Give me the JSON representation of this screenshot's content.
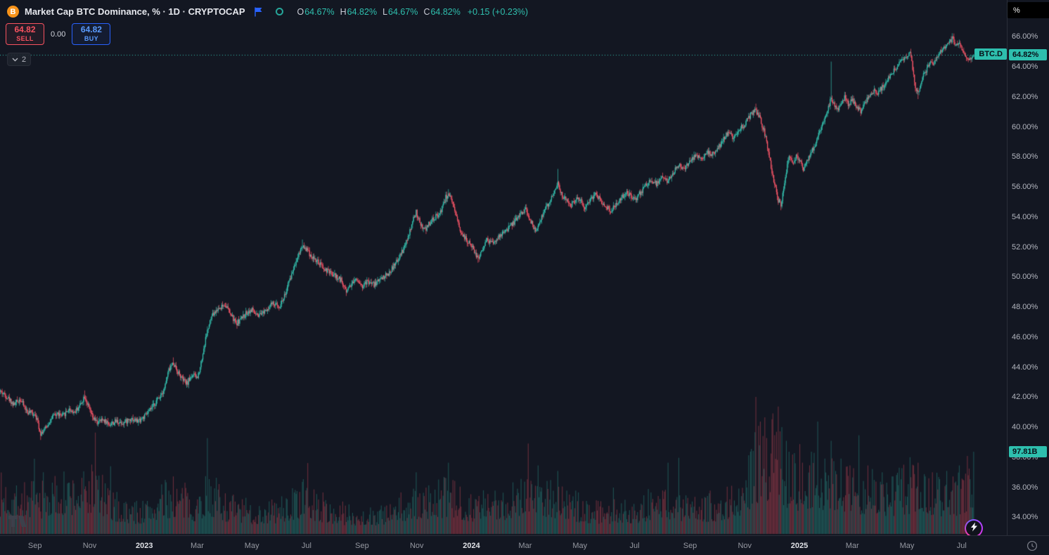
{
  "colors": {
    "bg": "#131722",
    "grid": "#2a2e39",
    "up": "#34c1af",
    "down": "#f65567",
    "vol_up": "rgba(50,180,164,0.38)",
    "vol_down": "rgba(246,85,103,0.38)",
    "badge_teal": "#2ebfae",
    "accent_blue": "#2962ff",
    "btc_orange": "#f7931a"
  },
  "header": {
    "btc_glyph": "B",
    "symbol_title": "Market Cap BTC Dominance, % · 1D · CRYPTOCAP",
    "ohlc": {
      "o_label": "O",
      "o_value": "64.67%",
      "h_label": "H",
      "h_value": "64.82%",
      "l_label": "L",
      "l_value": "64.67%",
      "c_label": "C",
      "c_value": "64.82%",
      "change": "+0.15 (+0.23%)"
    }
  },
  "trade_panel": {
    "sell_price": "64.82",
    "sell_label": "SELL",
    "spread": "0.00",
    "buy_price": "64.82",
    "buy_label": "BUY"
  },
  "object_tree_button": {
    "count": "2"
  },
  "price_scale": {
    "unit_button": "%",
    "symbol_badge": "BTC.D",
    "last_price_badge": "64.82%",
    "volume_badge": "97.81B",
    "tick_suffix": "%",
    "tick_values": [
      66,
      64,
      62,
      60,
      58,
      56,
      54,
      52,
      50,
      48,
      46,
      44,
      42,
      40,
      38,
      36,
      34
    ]
  },
  "time_scale": {
    "ticks": [
      {
        "label": "Sep",
        "day": 39
      },
      {
        "label": "Nov",
        "day": 100
      },
      {
        "label": "2023",
        "day": 161,
        "major": true
      },
      {
        "label": "Mar",
        "day": 220
      },
      {
        "label": "May",
        "day": 281
      },
      {
        "label": "Jul",
        "day": 342
      },
      {
        "label": "Sep",
        "day": 404
      },
      {
        "label": "Nov",
        "day": 465
      },
      {
        "label": "2024",
        "day": 526,
        "major": true
      },
      {
        "label": "Mar",
        "day": 586
      },
      {
        "label": "May",
        "day": 647
      },
      {
        "label": "Jul",
        "day": 708
      },
      {
        "label": "Sep",
        "day": 770
      },
      {
        "label": "Nov",
        "day": 831
      },
      {
        "label": "2025",
        "day": 892,
        "major": true
      },
      {
        "label": "Mar",
        "day": 951
      },
      {
        "label": "May",
        "day": 1012
      },
      {
        "label": "Jul",
        "day": 1073
      }
    ]
  },
  "chart_data": {
    "type": "candlestick",
    "symbol": "CRYPTOCAP:BTC.D",
    "title": "Market Cap BTC Dominance, %",
    "interval": "1D",
    "unit": "%",
    "visible_range": {
      "start": "2022-07-24",
      "end": "2025-07-14"
    },
    "last": {
      "open": 64.67,
      "high": 64.82,
      "low": 64.67,
      "close": 64.82,
      "change": 0.15,
      "change_pct": 0.23,
      "volume_display": "97.81B"
    },
    "y_axis": {
      "top_value": 68.45,
      "bottom_value": 32.8,
      "tick_step": 2,
      "unit": "%"
    },
    "total_days": 1086,
    "last_volume_frac": 0.6,
    "trend_anchors": [
      [
        0,
        42.4
      ],
      [
        8,
        42.0
      ],
      [
        15,
        41.5
      ],
      [
        22,
        41.9
      ],
      [
        30,
        41.0
      ],
      [
        39,
        40.9
      ],
      [
        45,
        39.6
      ],
      [
        50,
        39.9
      ],
      [
        57,
        40.6
      ],
      [
        64,
        40.9
      ],
      [
        69,
        40.7
      ],
      [
        76,
        41.2
      ],
      [
        83,
        41.0
      ],
      [
        90,
        41.6
      ],
      [
        94,
        42.1
      ],
      [
        98,
        41.4
      ],
      [
        103,
        40.6
      ],
      [
        108,
        40.3
      ],
      [
        115,
        40.5
      ],
      [
        122,
        40.2
      ],
      [
        130,
        40.4
      ],
      [
        138,
        40.3
      ],
      [
        146,
        40.6
      ],
      [
        153,
        40.4
      ],
      [
        161,
        40.7
      ],
      [
        168,
        41.2
      ],
      [
        176,
        41.9
      ],
      [
        183,
        42.6
      ],
      [
        188,
        43.8
      ],
      [
        193,
        44.3
      ],
      [
        197,
        43.8
      ],
      [
        203,
        43.2
      ],
      [
        208,
        42.9
      ],
      [
        214,
        43.5
      ],
      [
        220,
        43.3
      ],
      [
        225,
        44.6
      ],
      [
        230,
        46.2
      ],
      [
        236,
        47.4
      ],
      [
        243,
        47.9
      ],
      [
        251,
        48.2
      ],
      [
        257,
        47.5
      ],
      [
        263,
        46.9
      ],
      [
        270,
        47.3
      ],
      [
        276,
        47.7
      ],
      [
        281,
        47.8
      ],
      [
        288,
        47.3
      ],
      [
        295,
        47.8
      ],
      [
        303,
        48.2
      ],
      [
        312,
        48.1
      ],
      [
        318,
        48.9
      ],
      [
        325,
        50.2
      ],
      [
        331,
        51.3
      ],
      [
        337,
        52.1
      ],
      [
        341,
        51.9
      ],
      [
        347,
        51.4
      ],
      [
        354,
        51.0
      ],
      [
        360,
        50.6
      ],
      [
        367,
        50.3
      ],
      [
        373,
        50.1
      ],
      [
        380,
        49.8
      ],
      [
        386,
        49.1
      ],
      [
        392,
        49.6
      ],
      [
        398,
        49.9
      ],
      [
        404,
        49.4
      ],
      [
        410,
        49.7
      ],
      [
        417,
        49.5
      ],
      [
        424,
        49.9
      ],
      [
        430,
        50.1
      ],
      [
        434,
        50.3
      ],
      [
        440,
        50.8
      ],
      [
        446,
        51.4
      ],
      [
        451,
        52.0
      ],
      [
        456,
        52.8
      ],
      [
        460,
        53.7
      ],
      [
        464,
        54.3
      ],
      [
        468,
        53.6
      ],
      [
        473,
        53.1
      ],
      [
        478,
        53.5
      ],
      [
        483,
        53.9
      ],
      [
        488,
        54.1
      ],
      [
        492,
        54.5
      ],
      [
        497,
        55.3
      ],
      [
        500,
        55.6
      ],
      [
        504,
        54.9
      ],
      [
        508,
        54.1
      ],
      [
        513,
        53.2
      ],
      [
        518,
        52.6
      ],
      [
        523,
        52.3
      ],
      [
        528,
        51.8
      ],
      [
        533,
        51.2
      ],
      [
        538,
        51.9
      ],
      [
        543,
        52.5
      ],
      [
        549,
        52.2
      ],
      [
        555,
        52.6
      ],
      [
        561,
        52.9
      ],
      [
        568,
        53.3
      ],
      [
        575,
        53.8
      ],
      [
        581,
        54.3
      ],
      [
        586,
        54.5
      ],
      [
        591,
        53.8
      ],
      [
        597,
        53.1
      ],
      [
        603,
        53.9
      ],
      [
        609,
        54.6
      ],
      [
        614,
        55.1
      ],
      [
        619,
        55.9
      ],
      [
        622,
        56.3
      ],
      [
        626,
        55.5
      ],
      [
        631,
        55.1
      ],
      [
        637,
        54.8
      ],
      [
        643,
        55.3
      ],
      [
        647,
        55.1
      ],
      [
        652,
        54.7
      ],
      [
        658,
        55.2
      ],
      [
        664,
        55.5
      ],
      [
        670,
        55.1
      ],
      [
        675,
        54.8
      ],
      [
        681,
        54.4
      ],
      [
        687,
        54.9
      ],
      [
        693,
        55.3
      ],
      [
        699,
        55.6
      ],
      [
        705,
        55.3
      ],
      [
        708,
        55.1
      ],
      [
        714,
        55.6
      ],
      [
        720,
        56.1
      ],
      [
        726,
        56.5
      ],
      [
        732,
        56.2
      ],
      [
        739,
        56.6
      ],
      [
        745,
        56.3
      ],
      [
        751,
        57.0
      ],
      [
        757,
        57.5
      ],
      [
        763,
        57.2
      ],
      [
        770,
        57.7
      ],
      [
        776,
        58.2
      ],
      [
        782,
        57.9
      ],
      [
        788,
        58.4
      ],
      [
        794,
        58.1
      ],
      [
        800,
        58.5
      ],
      [
        806,
        59.1
      ],
      [
        812,
        59.6
      ],
      [
        818,
        59.3
      ],
      [
        824,
        59.9
      ],
      [
        831,
        60.2
      ],
      [
        837,
        60.8
      ],
      [
        842,
        61.2
      ],
      [
        847,
        60.6
      ],
      [
        852,
        59.8
      ],
      [
        856,
        58.7
      ],
      [
        860,
        57.4
      ],
      [
        864,
        56.1
      ],
      [
        868,
        55.1
      ],
      [
        871,
        54.8
      ],
      [
        874,
        55.9
      ],
      [
        877,
        57.1
      ],
      [
        880,
        58.1
      ],
      [
        884,
        57.6
      ],
      [
        888,
        58.0
      ],
      [
        892,
        57.8
      ],
      [
        896,
        57.2
      ],
      [
        900,
        57.7
      ],
      [
        904,
        58.2
      ],
      [
        908,
        58.7
      ],
      [
        912,
        59.3
      ],
      [
        916,
        59.9
      ],
      [
        920,
        60.6
      ],
      [
        924,
        61.4
      ],
      [
        927,
        61.9
      ],
      [
        930,
        61.5
      ],
      [
        934,
        61.1
      ],
      [
        938,
        61.6
      ],
      [
        942,
        62.0
      ],
      [
        946,
        61.5
      ],
      [
        951,
        61.8
      ],
      [
        956,
        61.3
      ],
      [
        960,
        61.0
      ],
      [
        964,
        61.5
      ],
      [
        969,
        62.0
      ],
      [
        974,
        62.4
      ],
      [
        978,
        62.2
      ],
      [
        982,
        62.5
      ],
      [
        987,
        62.9
      ],
      [
        992,
        63.3
      ],
      [
        997,
        63.8
      ],
      [
        1002,
        64.1
      ],
      [
        1007,
        64.5
      ],
      [
        1012,
        64.7
      ],
      [
        1015,
        64.9
      ],
      [
        1018,
        63.9
      ],
      [
        1021,
        62.6
      ],
      [
        1024,
        62.2
      ],
      [
        1027,
        62.8
      ],
      [
        1030,
        63.4
      ],
      [
        1034,
        63.9
      ],
      [
        1038,
        64.2
      ],
      [
        1043,
        64.4
      ],
      [
        1047,
        64.8
      ],
      [
        1051,
        65.1
      ],
      [
        1055,
        65.4
      ],
      [
        1059,
        65.7
      ],
      [
        1063,
        65.9
      ],
      [
        1066,
        65.4
      ],
      [
        1069,
        65.6
      ],
      [
        1072,
        65.2
      ],
      [
        1076,
        64.7
      ],
      [
        1080,
        64.4
      ],
      [
        1083,
        64.6
      ],
      [
        1086,
        64.8
      ]
    ],
    "wick_events": [
      {
        "d": 45,
        "low": 39.15
      },
      {
        "d": 94,
        "high": 42.45
      },
      {
        "d": 193,
        "high": 44.65
      },
      {
        "d": 238,
        "high": 47.8
      },
      {
        "d": 337,
        "high": 52.5
      },
      {
        "d": 500,
        "high": 55.85
      },
      {
        "d": 533,
        "low": 50.95
      },
      {
        "d": 622,
        "high": 57.2
      },
      {
        "d": 843,
        "high": 61.55
      },
      {
        "d": 871,
        "low": 54.45
      },
      {
        "d": 927,
        "high": 64.35
      },
      {
        "d": 1015,
        "high": 65.05
      },
      {
        "d": 1024,
        "low": 61.85
      },
      {
        "d": 1063,
        "high": 66.05
      }
    ],
    "volume_anchors": [
      [
        0,
        0.28
      ],
      [
        39,
        0.24
      ],
      [
        69,
        0.28
      ],
      [
        94,
        0.3
      ],
      [
        106,
        0.35
      ],
      [
        120,
        0.22
      ],
      [
        140,
        0.16
      ],
      [
        161,
        0.16
      ],
      [
        190,
        0.26
      ],
      [
        220,
        0.2
      ],
      [
        232,
        0.3
      ],
      [
        251,
        0.2
      ],
      [
        281,
        0.15
      ],
      [
        312,
        0.17
      ],
      [
        337,
        0.25
      ],
      [
        373,
        0.15
      ],
      [
        404,
        0.13
      ],
      [
        434,
        0.14
      ],
      [
        465,
        0.22
      ],
      [
        497,
        0.26
      ],
      [
        526,
        0.2
      ],
      [
        557,
        0.2
      ],
      [
        586,
        0.32
      ],
      [
        617,
        0.26
      ],
      [
        647,
        0.18
      ],
      [
        678,
        0.16
      ],
      [
        708,
        0.17
      ],
      [
        739,
        0.24
      ],
      [
        770,
        0.18
      ],
      [
        800,
        0.2
      ],
      [
        831,
        0.3
      ],
      [
        845,
        0.5
      ],
      [
        861,
        0.55
      ],
      [
        871,
        0.5
      ],
      [
        880,
        0.4
      ],
      [
        892,
        0.35
      ],
      [
        912,
        0.38
      ],
      [
        927,
        0.4
      ],
      [
        951,
        0.32
      ],
      [
        970,
        0.28
      ],
      [
        982,
        0.26
      ],
      [
        1012,
        0.32
      ],
      [
        1024,
        0.34
      ],
      [
        1043,
        0.28
      ],
      [
        1063,
        0.26
      ],
      [
        1073,
        0.3
      ],
      [
        1086,
        0.4
      ]
    ],
    "volume_spikes": [
      {
        "d": 106,
        "f": 0.74
      },
      {
        "d": 193,
        "f": 0.42
      },
      {
        "d": 233,
        "f": 0.4
      },
      {
        "d": 337,
        "f": 0.38
      },
      {
        "d": 464,
        "f": 0.45
      },
      {
        "d": 500,
        "f": 0.52
      },
      {
        "d": 589,
        "f": 0.66
      },
      {
        "d": 600,
        "f": 0.5
      },
      {
        "d": 622,
        "f": 0.46
      },
      {
        "d": 745,
        "f": 0.52
      },
      {
        "d": 838,
        "f": 0.62
      },
      {
        "d": 843,
        "f": 1.0
      },
      {
        "d": 848,
        "f": 0.82
      },
      {
        "d": 855,
        "f": 0.7
      },
      {
        "d": 862,
        "f": 0.88
      },
      {
        "d": 868,
        "f": 0.93
      },
      {
        "d": 872,
        "f": 0.78
      },
      {
        "d": 877,
        "f": 0.68
      },
      {
        "d": 884,
        "f": 0.58
      },
      {
        "d": 895,
        "f": 0.52
      },
      {
        "d": 905,
        "f": 0.6
      },
      {
        "d": 912,
        "f": 0.82
      },
      {
        "d": 920,
        "f": 0.55
      },
      {
        "d": 927,
        "f": 0.68
      },
      {
        "d": 938,
        "f": 0.55
      },
      {
        "d": 948,
        "f": 0.5
      },
      {
        "d": 958,
        "f": 0.72
      },
      {
        "d": 968,
        "f": 0.5
      },
      {
        "d": 984,
        "f": 0.45
      },
      {
        "d": 996,
        "f": 0.42
      },
      {
        "d": 1006,
        "f": 0.48
      },
      {
        "d": 1015,
        "f": 0.56
      },
      {
        "d": 1019,
        "f": 0.5
      },
      {
        "d": 1024,
        "f": 0.52
      },
      {
        "d": 1032,
        "f": 0.42
      },
      {
        "d": 1040,
        "f": 0.45
      },
      {
        "d": 1048,
        "f": 0.4
      },
      {
        "d": 1056,
        "f": 0.46
      },
      {
        "d": 1063,
        "f": 0.42
      },
      {
        "d": 1070,
        "f": 0.5
      },
      {
        "d": 1077,
        "f": 0.44
      },
      {
        "d": 1082,
        "f": 0.4
      },
      {
        "d": 1086,
        "f": 0.6
      }
    ]
  }
}
